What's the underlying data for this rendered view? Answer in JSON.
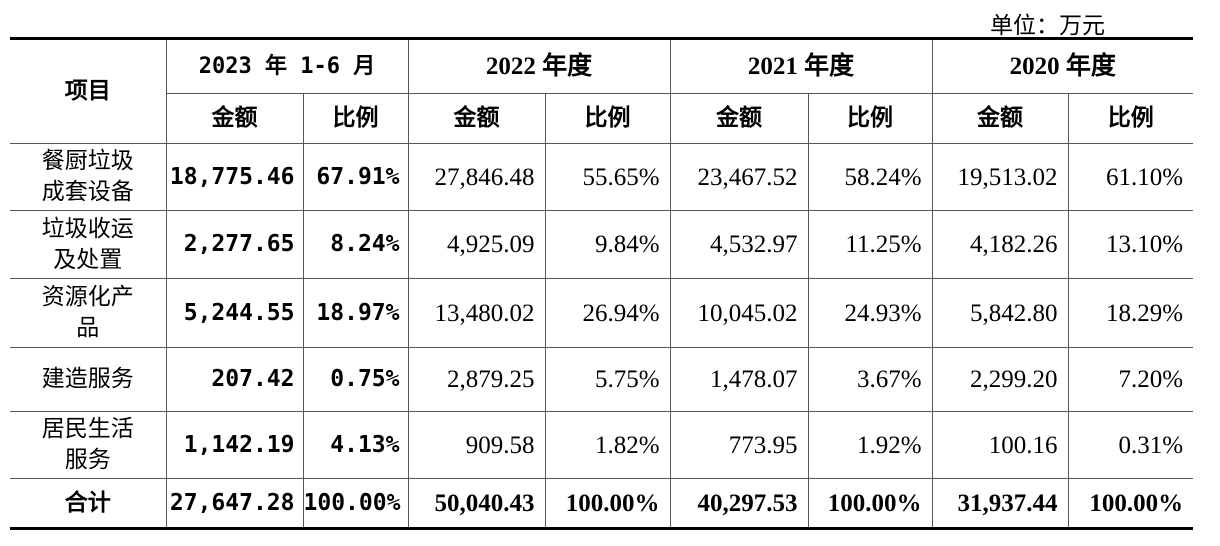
{
  "unit_label": "单位：万元",
  "header": {
    "item": "项目",
    "periods": [
      "2023 年 1-6 月",
      "2022 年度",
      "2021 年度",
      "2020 年度"
    ],
    "amount": "金额",
    "ratio": "比例"
  },
  "rows": [
    {
      "name": "餐厨垃圾成套设备",
      "values": [
        "18,775.46",
        "67.91%",
        "27,846.48",
        "55.65%",
        "23,467.52",
        "58.24%",
        "19,513.02",
        "61.10%"
      ]
    },
    {
      "name": "垃圾收运及处置",
      "values": [
        "2,277.65",
        "8.24%",
        "4,925.09",
        "9.84%",
        "4,532.97",
        "11.25%",
        "4,182.26",
        "13.10%"
      ]
    },
    {
      "name": "资源化产品",
      "values": [
        "5,244.55",
        "18.97%",
        "13,480.02",
        "26.94%",
        "10,045.02",
        "24.93%",
        "5,842.80",
        "18.29%"
      ]
    },
    {
      "name": "建造服务",
      "values": [
        "207.42",
        "0.75%",
        "2,879.25",
        "5.75%",
        "1,478.07",
        "3.67%",
        "2,299.20",
        "7.20%"
      ]
    },
    {
      "name": "居民生活服务",
      "values": [
        "1,142.19",
        "4.13%",
        "909.58",
        "1.82%",
        "773.95",
        "1.92%",
        "100.16",
        "0.31%"
      ]
    }
  ],
  "total": {
    "name": "合计",
    "values": [
      "27,647.28",
      "100.00%",
      "50,040.43",
      "100.00%",
      "40,297.53",
      "100.00%",
      "31,937.44",
      "100.00%"
    ]
  }
}
